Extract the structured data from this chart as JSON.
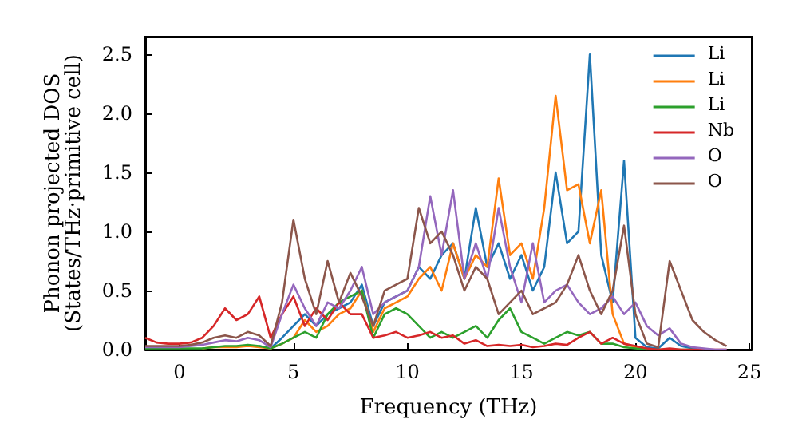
{
  "chart_data": {
    "type": "line",
    "xlabel": "Frequency (THz)",
    "ylabel": "Phonon projected DOS\n(States/THz·primitive cell)",
    "x": [
      -1.5,
      -1,
      -0.5,
      0,
      0.5,
      1,
      1.5,
      2,
      2.5,
      3,
      3.5,
      4,
      4.5,
      5,
      5.5,
      6,
      6.5,
      7,
      7.5,
      8,
      8.5,
      9,
      9.5,
      10,
      10.5,
      11,
      11.5,
      12,
      12.5,
      13,
      13.5,
      14,
      14.5,
      15,
      15.5,
      16,
      16.5,
      17,
      17.5,
      18,
      18.5,
      19,
      19.5,
      20,
      20.5,
      21,
      21.5,
      22,
      22.5,
      23,
      23.5,
      24
    ],
    "series": [
      {
        "name": "Li",
        "color": "#1f77b4",
        "values": [
          null,
          null,
          null,
          null,
          null,
          null,
          null,
          null,
          null,
          null,
          0.03,
          0.01,
          0.1,
          0.2,
          0.3,
          0.2,
          0.3,
          0.35,
          0.4,
          0.55,
          0.2,
          0.4,
          0.45,
          0.5,
          0.7,
          0.6,
          0.8,
          0.9,
          0.6,
          1.2,
          0.7,
          0.9,
          0.6,
          0.8,
          0.5,
          0.7,
          1.5,
          0.9,
          1.0,
          2.5,
          0.8,
          0.4,
          1.6,
          0.1,
          0.02,
          0.01,
          0.1,
          0.03,
          0.01,
          0,
          null,
          null
        ]
      },
      {
        "name": "Li",
        "color": "#ff7f0e",
        "values": [
          null,
          null,
          null,
          null,
          null,
          0.01,
          0.02,
          0.02,
          0.02,
          0.03,
          0.02,
          0.01,
          0.05,
          0.1,
          0.25,
          0.15,
          0.2,
          0.3,
          0.35,
          0.5,
          0.15,
          0.35,
          0.4,
          0.45,
          0.6,
          0.7,
          0.5,
          0.9,
          0.6,
          0.8,
          0.7,
          1.45,
          0.8,
          0.9,
          0.6,
          1.2,
          2.15,
          1.35,
          1.4,
          0.9,
          1.35,
          0.3,
          0.05,
          0.02,
          0,
          null,
          null,
          null,
          null,
          null,
          null,
          null
        ]
      },
      {
        "name": "Li",
        "color": "#2ca02c",
        "values": [
          0.01,
          0.01,
          0.01,
          0.01,
          0.01,
          0.01,
          0.02,
          0.03,
          0.03,
          0.04,
          0.03,
          0.01,
          0.05,
          0.1,
          0.15,
          0.1,
          0.3,
          0.4,
          0.45,
          0.5,
          0.1,
          0.3,
          0.35,
          0.3,
          0.2,
          0.1,
          0.15,
          0.1,
          0.15,
          0.2,
          0.1,
          0.25,
          0.35,
          0.15,
          0.1,
          0.05,
          0.1,
          0.15,
          0.12,
          0.15,
          0.05,
          0.05,
          0.02,
          0.01,
          0,
          0,
          0,
          0,
          0,
          null,
          null,
          null
        ]
      },
      {
        "name": "Nb",
        "color": "#d62728",
        "values": [
          0.1,
          0.06,
          0.05,
          0.05,
          0.06,
          0.1,
          0.2,
          0.35,
          0.25,
          0.3,
          0.45,
          0.1,
          0.3,
          0.45,
          0.2,
          0.35,
          0.25,
          0.4,
          0.3,
          0.3,
          0.1,
          0.12,
          0.15,
          0.1,
          0.12,
          0.15,
          0.1,
          0.12,
          0.05,
          0.08,
          0.03,
          0.04,
          0.03,
          0.04,
          0.02,
          0.03,
          0.05,
          0.04,
          0.1,
          0.15,
          0.05,
          0.1,
          0.05,
          0.03,
          0.01,
          0,
          0.01,
          0,
          0,
          0,
          0,
          0
        ]
      },
      {
        "name": "O",
        "color": "#9467bd",
        "values": [
          0.02,
          0.02,
          0.02,
          0.02,
          0.03,
          0.04,
          0.06,
          0.08,
          0.07,
          0.1,
          0.08,
          0.02,
          0.3,
          0.55,
          0.35,
          0.2,
          0.4,
          0.35,
          0.5,
          0.7,
          0.3,
          0.4,
          0.45,
          0.5,
          0.7,
          1.3,
          0.8,
          1.35,
          0.6,
          0.9,
          0.6,
          1.2,
          0.7,
          0.4,
          0.9,
          0.4,
          0.5,
          0.55,
          0.4,
          0.3,
          0.35,
          0.45,
          0.3,
          0.4,
          0.2,
          0.12,
          0.18,
          0.05,
          0.02,
          0.01,
          0,
          0
        ]
      },
      {
        "name": "O",
        "color": "#8c564b",
        "values": [
          0.03,
          0.03,
          0.03,
          0.03,
          0.04,
          0.06,
          0.1,
          0.12,
          0.1,
          0.15,
          0.12,
          0.03,
          0.4,
          1.1,
          0.6,
          0.3,
          0.75,
          0.4,
          0.65,
          0.45,
          0.2,
          0.5,
          0.55,
          0.6,
          1.2,
          0.9,
          1.0,
          0.8,
          0.5,
          0.7,
          0.6,
          0.3,
          0.4,
          0.5,
          0.3,
          0.35,
          0.4,
          0.55,
          0.8,
          0.5,
          0.3,
          0.5,
          1.05,
          0.3,
          0.05,
          0.02,
          0.75,
          0.5,
          0.25,
          0.15,
          0.08,
          0.03
        ]
      }
    ],
    "xlim": [
      -1.5,
      25.1
    ],
    "ylim": [
      0,
      2.65
    ],
    "xticks": [
      0,
      5,
      10,
      15,
      20,
      25
    ],
    "yticks": [
      {
        "value": 0,
        "label": "0.0"
      },
      0.5,
      {
        "value": 1,
        "label": "1.0"
      },
      1.5,
      {
        "value": 2,
        "label": "2.0"
      },
      2.5
    ],
    "legend": "top right",
    "grid": false,
    "marker": "none",
    "line_style": "solid"
  }
}
